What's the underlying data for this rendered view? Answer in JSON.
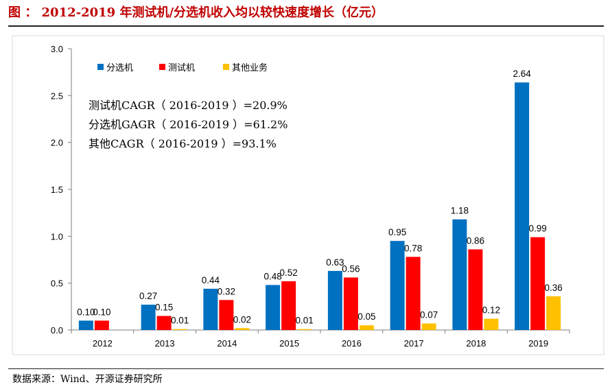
{
  "header": {
    "title": "图 ： 2012-2019 年测试机/分选机收入均以较快速度增长（亿元）"
  },
  "footer": {
    "source": "数据来源：Wind、开源证券研究所"
  },
  "chart_data": {
    "type": "bar",
    "title": "",
    "xlabel": "",
    "ylabel": "",
    "categories": [
      "2012",
      "2013",
      "2014",
      "2015",
      "2016",
      "2017",
      "2018",
      "2019"
    ],
    "ylim": [
      0,
      3.0
    ],
    "yticks": [
      "0.0",
      "0.5",
      "1.0",
      "1.5",
      "2.0",
      "2.5",
      "3.0"
    ],
    "grid": false,
    "legend_position": "top-left",
    "series": [
      {
        "name": "分选机",
        "color": "#0070c0",
        "values": [
          0.1,
          0.27,
          0.44,
          0.48,
          0.63,
          0.95,
          1.18,
          2.64
        ],
        "labels": [
          "0.10",
          "0.27",
          "0.44",
          "0.48",
          "0.63",
          "0.95",
          "1.18",
          "2.64"
        ]
      },
      {
        "name": "测试机",
        "color": "#ff0000",
        "values": [
          0.1,
          0.15,
          0.32,
          0.52,
          0.56,
          0.78,
          0.86,
          0.99
        ],
        "labels": [
          "0.10",
          "0.15",
          "0.32",
          "0.52",
          "0.56",
          "0.78",
          "0.86",
          "0.99"
        ]
      },
      {
        "name": "其他业务",
        "color": "#ffc000",
        "values": [
          0,
          0.01,
          0.02,
          0.01,
          0.05,
          0.07,
          0.12,
          0.36
        ],
        "labels": [
          "",
          "0.01",
          "0.02",
          "0.01",
          "0.05",
          "0.07",
          "0.12",
          "0.36"
        ]
      }
    ],
    "annotations": [
      "测试机CAGR（ 2016-2019 ）=20.9%",
      "分选机GAGR（ 2016-2019 ）=61.2%",
      "其他CAGR（ 2016-2019 ）=93.1%"
    ]
  }
}
